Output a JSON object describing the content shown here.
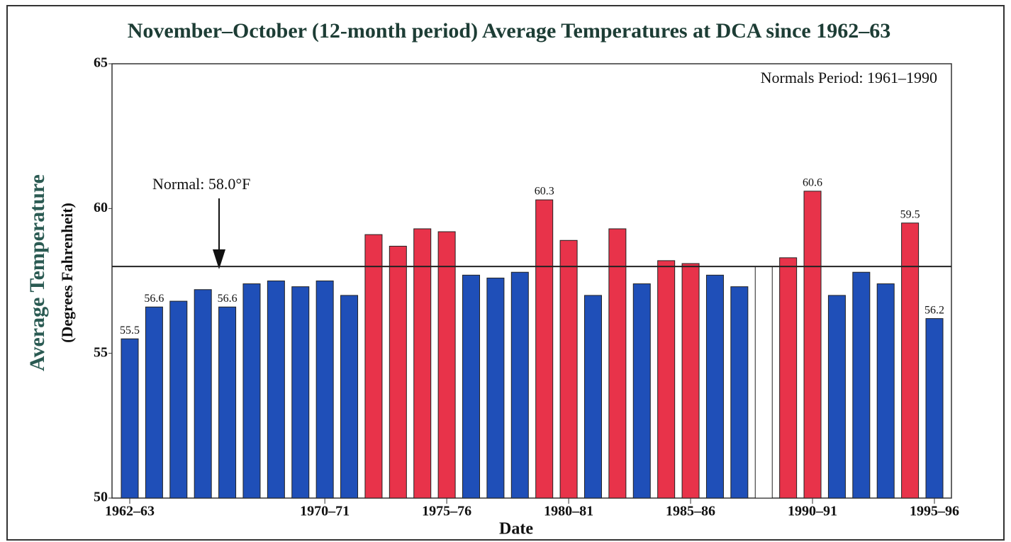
{
  "chart_data": {
    "type": "bar",
    "title": "November–October (12-month period) Average Temperatures at DCA since 1962–63",
    "x_label": "Date",
    "y_label": "Average Temperature",
    "y_sublabel": "(Degrees Fahrenheit)",
    "annotation": "Normals Period: 1961–1990",
    "normal_label": "Normal: 58.0°F",
    "normal": 58.0,
    "categories": [
      "1962–63",
      null,
      null,
      null,
      null,
      null,
      null,
      null,
      "1970–71",
      null,
      null,
      null,
      null,
      "1975–76",
      null,
      null,
      null,
      null,
      "1980–81",
      null,
      null,
      null,
      null,
      "1985–86",
      null,
      null,
      null,
      null,
      "1990–91",
      null,
      null,
      null,
      null,
      "1995–96"
    ],
    "values": [
      55.5,
      56.6,
      56.8,
      57.2,
      56.6,
      57.4,
      57.5,
      57.3,
      57.5,
      57.0,
      59.1,
      58.7,
      59.3,
      59.2,
      57.7,
      57.6,
      57.8,
      60.3,
      58.9,
      57.0,
      59.3,
      57.4,
      58.2,
      58.1,
      57.7,
      57.3,
      58.0,
      58.3,
      60.6,
      57.0,
      57.8,
      57.4,
      59.5,
      56.2
    ],
    "value_labels": [
      "55.5",
      "56.6",
      null,
      null,
      "56.6",
      null,
      null,
      null,
      null,
      null,
      null,
      null,
      null,
      null,
      null,
      null,
      null,
      "60.3",
      null,
      null,
      null,
      null,
      null,
      null,
      null,
      null,
      null,
      null,
      "60.6",
      null,
      null,
      null,
      "59.5",
      "56.2"
    ],
    "colors": [
      "#1f4fb8",
      "#1f4fb8",
      "#1f4fb8",
      "#1f4fb8",
      "#1f4fb8",
      "#1f4fb8",
      "#1f4fb8",
      "#1f4fb8",
      "#1f4fb8",
      "#1f4fb8",
      "#e8334a",
      "#e8334a",
      "#e8334a",
      "#e8334a",
      "#1f4fb8",
      "#1f4fb8",
      "#1f4fb8",
      "#e8334a",
      "#e8334a",
      "#1f4fb8",
      "#e8334a",
      "#1f4fb8",
      "#e8334a",
      "#e8334a",
      "#1f4fb8",
      "#1f4fb8",
      "#ffffff",
      "#e8334a",
      "#e8334a",
      "#1f4fb8",
      "#1f4fb8",
      "#1f4fb8",
      "#e8334a",
      "#1f4fb8"
    ],
    "ylim": [
      50,
      65
    ],
    "yticks": [
      50,
      55,
      60,
      65
    ]
  }
}
